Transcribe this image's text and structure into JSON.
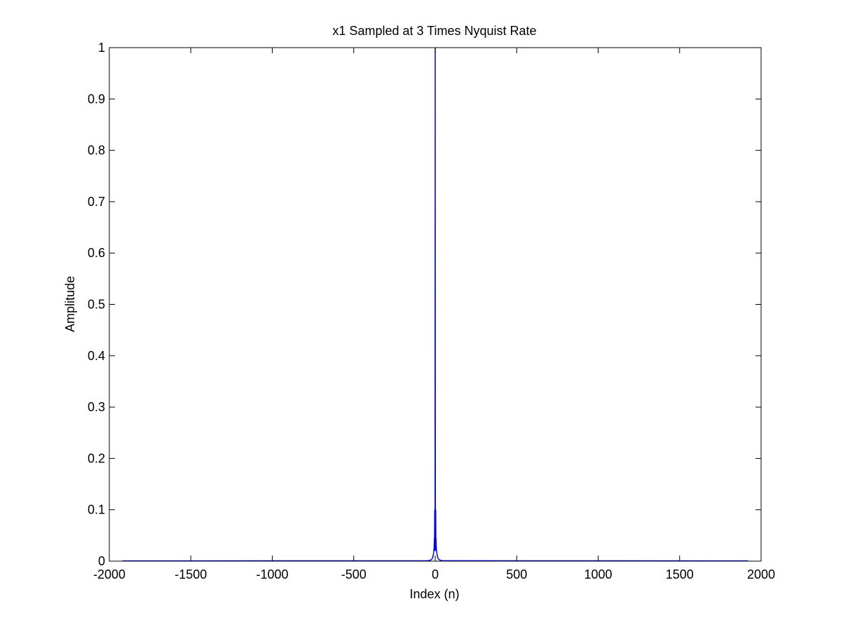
{
  "chart_data": {
    "type": "line",
    "title": "x1 Sampled at 3 Times Nyquist Rate",
    "xlabel": "Index (n)",
    "ylabel": "Amplitude",
    "xlim": [
      -2000,
      2000
    ],
    "ylim": [
      0,
      1
    ],
    "xticks": [
      -2000,
      -1500,
      -1000,
      -500,
      0,
      500,
      1000,
      1500,
      2000
    ],
    "yticks": [
      0,
      0.1,
      0.2,
      0.3,
      0.4,
      0.5,
      0.6,
      0.7,
      0.8,
      0.9,
      1
    ],
    "grid": false,
    "x_range": [
      -1920,
      1920
    ],
    "series": [
      {
        "color": "#0000ff",
        "points": [
          [
            -1920,
            0.0005
          ],
          [
            -60,
            0.0008
          ],
          [
            -40,
            0.001
          ],
          [
            -30,
            0.002
          ],
          [
            -24,
            0.003
          ],
          [
            -18,
            0.005
          ],
          [
            -15,
            0.008
          ],
          [
            -12,
            0.012
          ],
          [
            -9,
            0.018
          ],
          [
            -7,
            0.025
          ],
          [
            -6,
            0.03
          ],
          [
            -5,
            0.045
          ],
          [
            -4,
            0.04
          ],
          [
            -3,
            0.1
          ],
          [
            -2,
            0.03
          ],
          [
            -1,
            0.02
          ],
          [
            0,
            1
          ],
          [
            1,
            0.02
          ],
          [
            2,
            0.03
          ],
          [
            3,
            0.1
          ],
          [
            4,
            0.04
          ],
          [
            5,
            0.045
          ],
          [
            6,
            0.03
          ],
          [
            7,
            0.025
          ],
          [
            9,
            0.018
          ],
          [
            12,
            0.012
          ],
          [
            15,
            0.008
          ],
          [
            18,
            0.005
          ],
          [
            24,
            0.003
          ],
          [
            30,
            0.002
          ],
          [
            40,
            0.001
          ],
          [
            60,
            0.0008
          ],
          [
            1920,
            0.0005
          ]
        ]
      }
    ]
  }
}
